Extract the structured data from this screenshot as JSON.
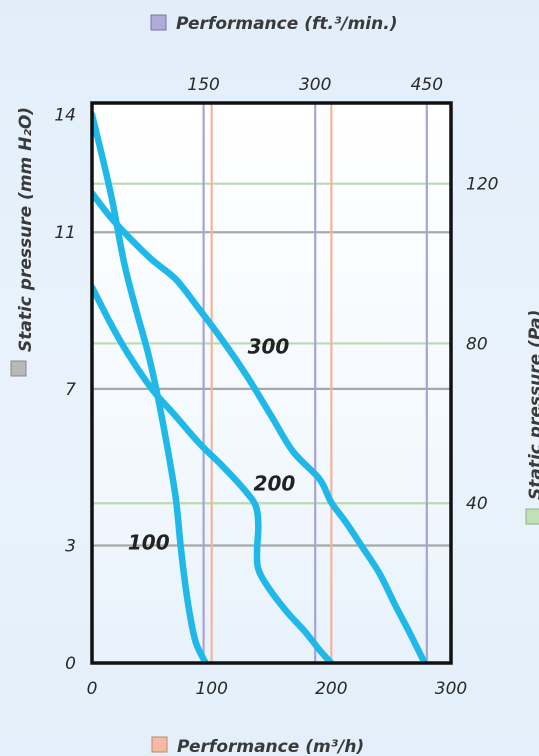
{
  "chart_data": {
    "type": "line",
    "axes": {
      "bottom": {
        "label": "Performance (m³/h)",
        "ticks": [
          0,
          100,
          200,
          300
        ],
        "range": [
          0,
          300
        ],
        "swatch_color": "#f5b8a0"
      },
      "top": {
        "label": "Performance (ft.³/min.)",
        "ticks": [
          150,
          300,
          450
        ],
        "range": [
          0,
          176.6
        ],
        "swatch_color": "#b0aad8"
      },
      "left": {
        "label": "Static pressure (mm H₂O)",
        "ticks": [
          0,
          3,
          7,
          11,
          14
        ],
        "range": [
          0,
          14.3
        ],
        "swatch_color": "#b8b8b8"
      },
      "right": {
        "label": "Static pressure (Pa)",
        "ticks": [
          40,
          80,
          120
        ],
        "range": [
          0,
          140.2
        ],
        "swatch_color": "#c0e0b8"
      }
    },
    "grid": true,
    "series": [
      {
        "name": "100",
        "color": "#20b8e8",
        "points": [
          [
            0,
            14.0
          ],
          [
            8,
            13.0
          ],
          [
            17,
            11.8
          ],
          [
            27,
            10.2
          ],
          [
            37,
            9.0
          ],
          [
            47,
            7.9
          ],
          [
            55,
            6.8
          ],
          [
            63,
            5.5
          ],
          [
            70,
            4.2
          ],
          [
            74,
            3.0
          ],
          [
            78,
            2.0
          ],
          [
            82,
            1.2
          ],
          [
            87,
            0.5
          ],
          [
            95,
            0.0
          ]
        ]
      },
      {
        "name": "200",
        "color": "#20b8e8",
        "points": [
          [
            0,
            9.6
          ],
          [
            15,
            8.7
          ],
          [
            30,
            7.9
          ],
          [
            50,
            7.0
          ],
          [
            70,
            6.3
          ],
          [
            90,
            5.6
          ],
          [
            110,
            5.0
          ],
          [
            128,
            4.4
          ],
          [
            137,
            4.0
          ],
          [
            139,
            3.5
          ],
          [
            138,
            2.9
          ],
          [
            139,
            2.4
          ],
          [
            148,
            1.9
          ],
          [
            163,
            1.3
          ],
          [
            178,
            0.8
          ],
          [
            191,
            0.3
          ],
          [
            200,
            0.0
          ]
        ]
      },
      {
        "name": "300",
        "color": "#20b8e8",
        "points": [
          [
            0,
            12.0
          ],
          [
            15,
            11.4
          ],
          [
            30,
            10.9
          ],
          [
            50,
            10.3
          ],
          [
            70,
            9.8
          ],
          [
            88,
            9.1
          ],
          [
            110,
            8.2
          ],
          [
            130,
            7.3
          ],
          [
            150,
            6.3
          ],
          [
            168,
            5.4
          ],
          [
            190,
            4.7
          ],
          [
            200,
            4.1
          ],
          [
            212,
            3.6
          ],
          [
            225,
            3.0
          ],
          [
            240,
            2.3
          ],
          [
            253,
            1.5
          ],
          [
            265,
            0.8
          ],
          [
            278,
            0.0
          ]
        ]
      }
    ],
    "reference_lines": {
      "bottom_axis_values": [
        100,
        200
      ],
      "top_axis_values": [
        150,
        300,
        450
      ],
      "left_axis_values": [
        3,
        7,
        11
      ],
      "right_axis_values": [
        40,
        80,
        120
      ]
    },
    "colors": {
      "curve": "#20b8e8",
      "frame": "#111111",
      "grid_mm": "#a8a8a8",
      "grid_pa": "#b8dcb0",
      "grid_m3h": "#f2b49a",
      "grid_cfm": "#a9a2d4"
    }
  }
}
